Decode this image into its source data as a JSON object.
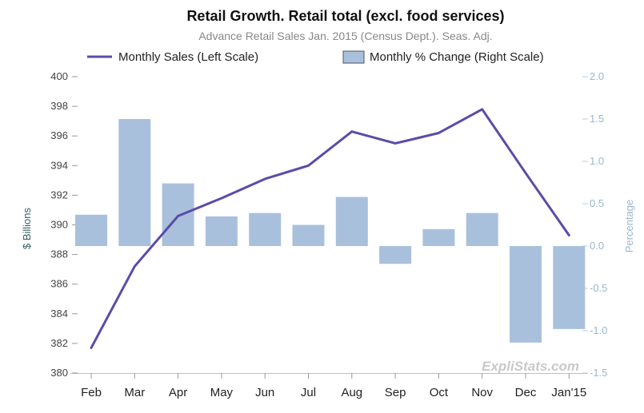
{
  "chart_data": {
    "type": "bar+line",
    "title": "Retail Growth. Retail total (excl. food services)",
    "subtitle": "Advance Retail Sales Jan. 2015 (Census Dept.). Seas. Adj.",
    "categories": [
      "Feb",
      "Mar",
      "Apr",
      "May",
      "Jun",
      "Jul",
      "Aug",
      "Sep",
      "Oct",
      "Nov",
      "Dec",
      "Jan'15"
    ],
    "series": [
      {
        "name": "Monthly Sales (Left Scale)",
        "type": "line",
        "axis": "left",
        "color": "#5b4ca8",
        "values": [
          381.7,
          387.2,
          390.6,
          391.8,
          393.1,
          394.0,
          396.3,
          395.5,
          396.2,
          397.8,
          393.5,
          389.3
        ]
      },
      {
        "name": "Monthly % Change (Right Scale)",
        "type": "bar",
        "axis": "right",
        "color": "#a9c0dd",
        "values": [
          0.37,
          1.5,
          0.74,
          0.35,
          0.39,
          0.25,
          0.58,
          -0.21,
          0.2,
          0.39,
          -1.14,
          -0.98
        ]
      }
    ],
    "ylabel": "$ Billions",
    "ylim": [
      380,
      400
    ],
    "yticks": [
      "380",
      "382",
      "384",
      "386",
      "388",
      "390",
      "392",
      "394",
      "396",
      "398",
      "400"
    ],
    "y2label": "Percentage",
    "y2lim": [
      -1.5,
      2.0
    ],
    "y2ticks": [
      "-1.5",
      "-1.0",
      "-0.5",
      "0.0",
      "0.5",
      "1.0",
      "1.5",
      "2.0"
    ],
    "grid": false,
    "legend_position": "top",
    "watermark": "ExpliStats.com"
  }
}
